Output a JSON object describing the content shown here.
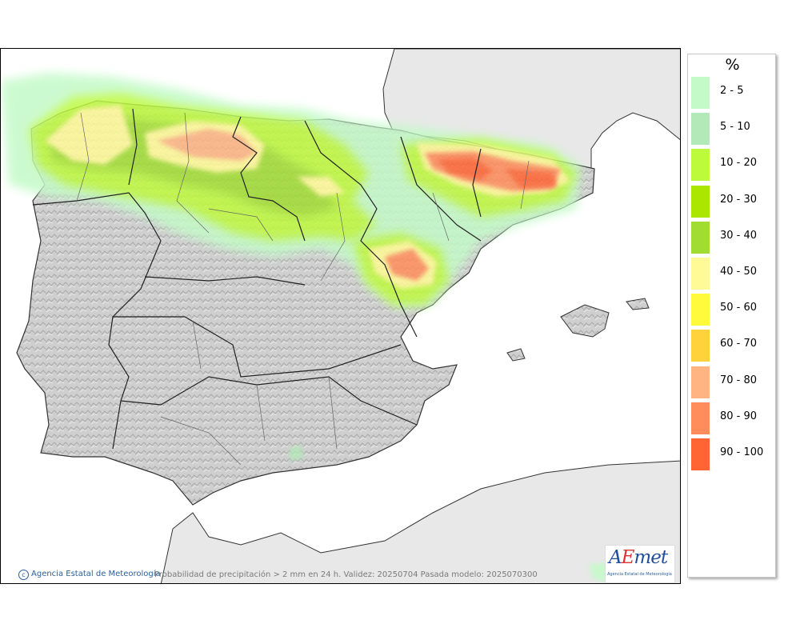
{
  "map": {
    "credit": "Agencia Estatal de Meteorología",
    "credit_icon": "copyright-icon",
    "caption": "Probabilidad de precipitación > 2 mm en 24 h. Validez: 20250704 Pasada modelo: 2025070300",
    "logo": {
      "first": "A",
      "second": "E",
      "rest": "met",
      "subtitle": "Agencia Estatal de Meteorología"
    }
  },
  "legend": {
    "title": "%",
    "classes": [
      {
        "label": "2 - 5",
        "color": "#c3fac8"
      },
      {
        "label": "5 - 10",
        "color": "#b3e8b8"
      },
      {
        "label": "10 - 20",
        "color": "#befa3c"
      },
      {
        "label": "20 - 30",
        "color": "#aae600"
      },
      {
        "label": "30 - 40",
        "color": "#a0dc32"
      },
      {
        "label": "40 - 50",
        "color": "#fffa96"
      },
      {
        "label": "50 - 60",
        "color": "#fffa3c"
      },
      {
        "label": "60 - 70",
        "color": "#ffd23c"
      },
      {
        "label": "70 - 80",
        "color": "#ffb482"
      },
      {
        "label": "80 - 90",
        "color": "#ff8c5a"
      },
      {
        "label": "90 - 100",
        "color": "#ff6432"
      }
    ]
  }
}
